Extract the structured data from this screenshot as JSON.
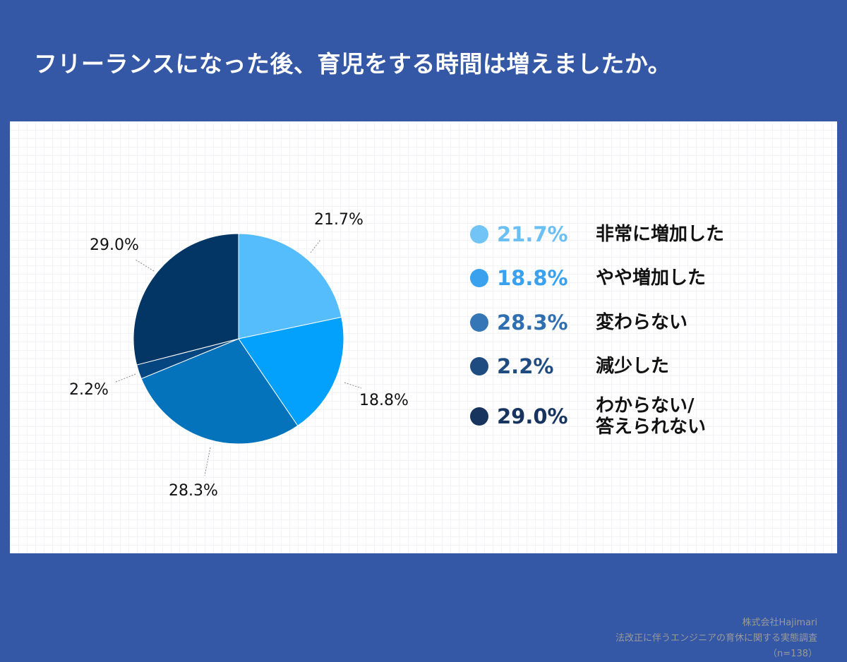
{
  "title": "フリーランスになった後、育児をする時間は増えましたか。",
  "chart_data": {
    "type": "pie",
    "start_angle_deg": 0,
    "direction": "clockwise",
    "slices": [
      {
        "label": "非常に増加した",
        "value": 21.7,
        "display": "21.7%",
        "color": "#55bdfc"
      },
      {
        "label": "やや増加した",
        "value": 18.8,
        "display": "18.8%",
        "color": "#03a1fc"
      },
      {
        "label": "変わらない",
        "value": 28.3,
        "display": "28.3%",
        "color": "#0473bb"
      },
      {
        "label": "減少した",
        "value": 2.2,
        "display": "2.2%",
        "color": "#054680"
      },
      {
        "label": "わからない/\n答えられない",
        "value": 29.0,
        "display": "29.0%",
        "color": "#033565"
      }
    ]
  },
  "legend": {
    "items": [
      {
        "pct": "21.7%",
        "label": "非常に増加した",
        "dot_color": "#72c4f6",
        "text_color": "#6cbff3"
      },
      {
        "pct": "18.8%",
        "label": "やや増加した",
        "dot_color": "#3aa1ef",
        "text_color": "#3aa1ef"
      },
      {
        "pct": "28.3%",
        "label": "変わらない",
        "dot_color": "#3577b6",
        "text_color": "#2f6fb0"
      },
      {
        "pct": "2.2%",
        "label": "減少した",
        "dot_color": "#1e4b80",
        "text_color": "#1e4b80"
      },
      {
        "pct": "29.0%",
        "label": "わからない/\n答えられない",
        "dot_color": "#17345f",
        "text_color": "#17345f"
      }
    ]
  },
  "source": {
    "company": "株式会社Hajimari",
    "survey": "法改正に伴うエンジニアの育休に関する実態調査",
    "sample": "（n=138）"
  }
}
